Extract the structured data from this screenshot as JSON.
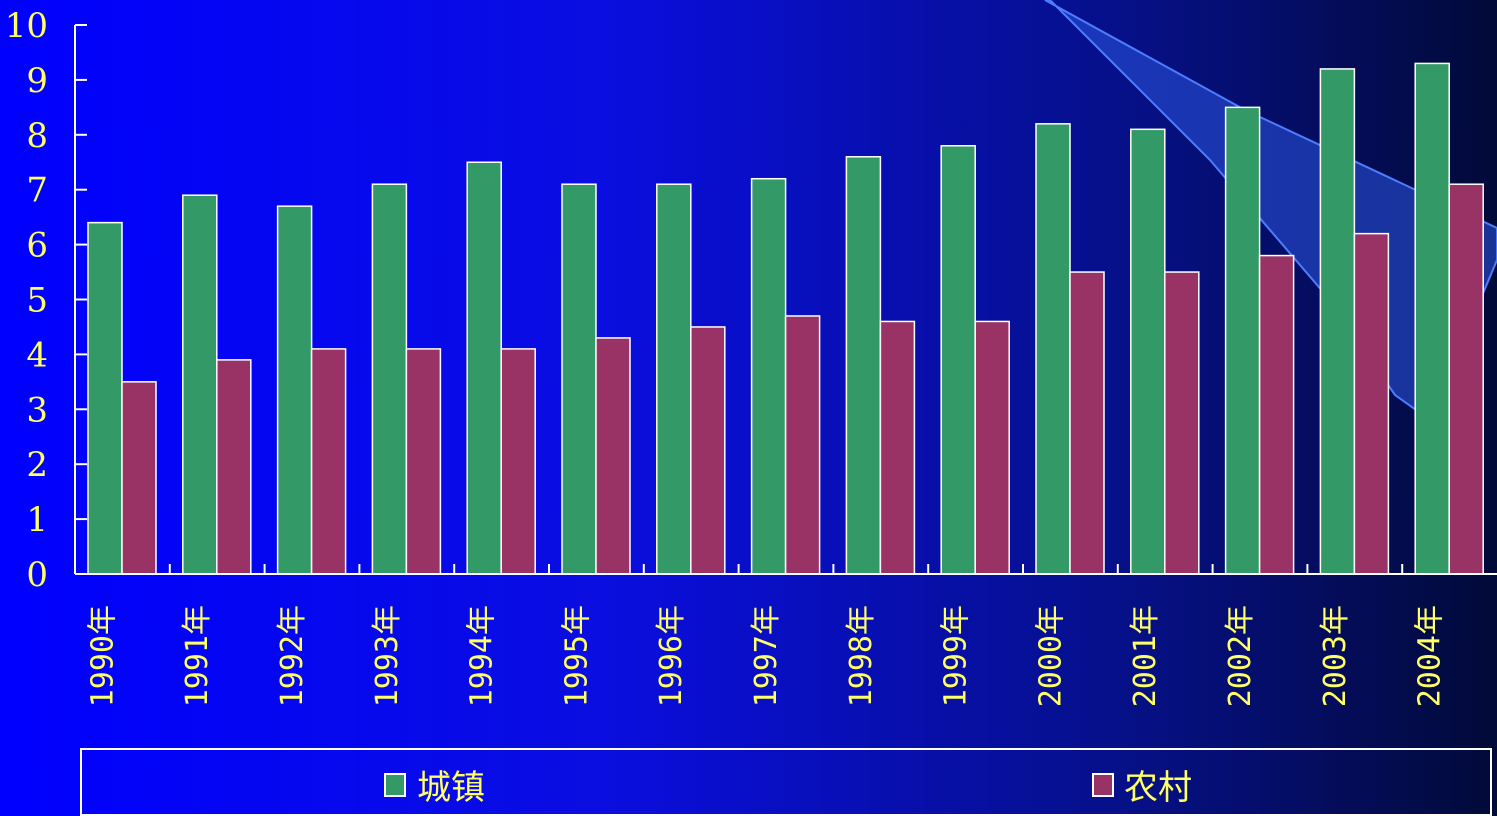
{
  "chart_data": {
    "type": "bar",
    "categories": [
      "1990年",
      "1991年",
      "1992年",
      "1993年",
      "1994年",
      "1995年",
      "1996年",
      "1997年",
      "1998年",
      "1999年",
      "2000年",
      "2001年",
      "2002年",
      "2003年",
      "2004年"
    ],
    "series": [
      {
        "name": "城镇",
        "color": "#339966",
        "values": [
          6.4,
          6.9,
          6.7,
          7.1,
          7.5,
          7.1,
          7.1,
          7.2,
          7.6,
          7.8,
          8.2,
          8.1,
          8.5,
          9.2,
          9.3
        ]
      },
      {
        "name": "农村",
        "color": "#993366",
        "values": [
          3.5,
          3.9,
          4.1,
          4.1,
          4.1,
          4.3,
          4.5,
          4.7,
          4.6,
          4.6,
          5.5,
          5.5,
          5.8,
          6.2,
          7.1
        ]
      }
    ],
    "ylim": [
      0,
      10
    ],
    "yticks": [
      "0",
      "1",
      "2",
      "3",
      "4",
      "5",
      "6",
      "7",
      "8",
      "9",
      "10"
    ],
    "legend_position": "bottom",
    "grid": false,
    "colors": {
      "axis": "#ffffff",
      "label": "#ffff66",
      "bar_outline": "#ffffff"
    }
  }
}
